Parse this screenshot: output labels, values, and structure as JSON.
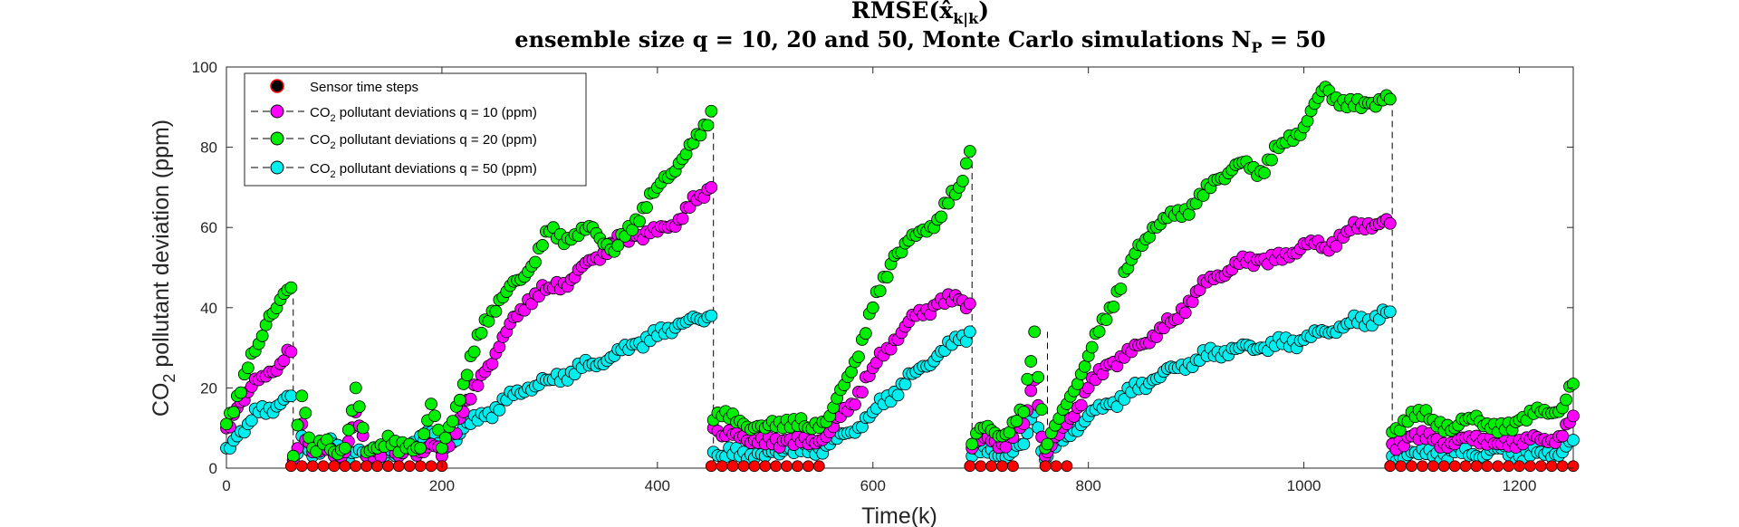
{
  "chart_data": {
    "type": "scatter",
    "title": "RMSE(x̂",
    "title_subscript": "k|k",
    "title_close": ")",
    "subtitle": "ensemble size q = 10, 20 and 50, Monte Carlo simulations N",
    "subtitle_subscript": "P",
    "subtitle_tail": " = 50",
    "xlabel": "Time(k)",
    "ylabel_prefix": "CO",
    "ylabel_subscript": "2",
    "ylabel_suffix": " pollutant deviation (ppm)",
    "xlim": [
      0,
      1250
    ],
    "ylim": [
      0,
      100
    ],
    "xticks": [
      0,
      200,
      400,
      600,
      800,
      1000,
      1200
    ],
    "yticks": [
      0,
      20,
      40,
      60,
      80,
      100
    ],
    "grid": false,
    "legend_position": "top-left",
    "sensor_steps": {
      "name": "Sensor time steps",
      "color": "#ff0000",
      "x": [
        60,
        70,
        80,
        90,
        100,
        110,
        120,
        130,
        140,
        150,
        160,
        170,
        180,
        190,
        200,
        450,
        460,
        470,
        480,
        490,
        500,
        510,
        520,
        530,
        540,
        550,
        690,
        700,
        710,
        720,
        730,
        760,
        770,
        780,
        1080,
        1090,
        1100,
        1110,
        1120,
        1130,
        1140,
        1150,
        1160,
        1170,
        1180,
        1190,
        1200,
        1210,
        1220,
        1230,
        1240,
        1250
      ],
      "y": [
        0.5,
        0.5,
        0.5,
        0.5,
        0.5,
        0.5,
        0.5,
        0.5,
        0.5,
        0.5,
        0.5,
        0.5,
        0.5,
        0.5,
        0.5,
        0.5,
        0.5,
        0.5,
        0.5,
        0.5,
        0.5,
        0.5,
        0.5,
        0.5,
        0.5,
        0.5,
        0.5,
        0.5,
        0.5,
        0.5,
        0.5,
        0.5,
        0.5,
        0.5,
        0.5,
        0.5,
        0.5,
        0.5,
        0.5,
        0.5,
        0.5,
        0.5,
        0.5,
        0.5,
        0.5,
        0.5,
        0.5,
        0.5,
        0.5,
        0.5,
        0.5,
        0.5
      ]
    },
    "series": [
      {
        "name_prefix": "CO",
        "name_subscript": "2",
        "name_suffix": " pollutant deviations q = 10 (ppm)",
        "color": "#ff00ff",
        "x": [
          0,
          10,
          20,
          30,
          40,
          50,
          60,
          62,
          70,
          80,
          90,
          100,
          110,
          120,
          130,
          140,
          150,
          160,
          170,
          180,
          190,
          200,
          220,
          240,
          260,
          280,
          300,
          320,
          340,
          360,
          380,
          400,
          420,
          440,
          450,
          452,
          460,
          480,
          500,
          520,
          540,
          560,
          580,
          600,
          620,
          640,
          660,
          680,
          690,
          692,
          700,
          720,
          740,
          750,
          760,
          762,
          780,
          800,
          820,
          840,
          860,
          880,
          900,
          920,
          940,
          960,
          980,
          1000,
          1020,
          1040,
          1060,
          1080,
          1082,
          1100,
          1120,
          1140,
          1160,
          1180,
          1200,
          1220,
          1240,
          1250
        ],
        "y": [
          10,
          15,
          19,
          22,
          24,
          26,
          29,
          2,
          11,
          4,
          5,
          3,
          4,
          14,
          3,
          4,
          6,
          3,
          5,
          4,
          6,
          3,
          14,
          24,
          34,
          42,
          45,
          47,
          52,
          56,
          58,
          59,
          62,
          68,
          70,
          10,
          8,
          8,
          6,
          7,
          6,
          9,
          16,
          25,
          32,
          38,
          41,
          42,
          41,
          5,
          7,
          6,
          11,
          22,
          3,
          4,
          11,
          20,
          26,
          29,
          33,
          37,
          44,
          48,
          51,
          52,
          52,
          56,
          55,
          59,
          61,
          61,
          6,
          8,
          7,
          6,
          8,
          6,
          7,
          7,
          8,
          13
        ]
      },
      {
        "name_prefix": "CO",
        "name_subscript": "2",
        "name_suffix": " pollutant deviations q = 20 (ppm)",
        "color": "#00ee00",
        "x": [
          0,
          10,
          20,
          30,
          40,
          50,
          60,
          62,
          70,
          80,
          90,
          100,
          110,
          120,
          130,
          140,
          150,
          160,
          170,
          180,
          190,
          200,
          220,
          240,
          260,
          280,
          300,
          320,
          340,
          360,
          380,
          400,
          420,
          440,
          450,
          452,
          460,
          480,
          500,
          520,
          540,
          560,
          580,
          600,
          620,
          640,
          660,
          680,
          690,
          692,
          700,
          720,
          740,
          750,
          760,
          762,
          780,
          800,
          820,
          840,
          860,
          880,
          900,
          920,
          940,
          960,
          980,
          1000,
          1020,
          1040,
          1060,
          1080,
          1082,
          1100,
          1120,
          1140,
          1160,
          1180,
          1200,
          1220,
          1240,
          1250
        ],
        "y": [
          11,
          18,
          25,
          31,
          38,
          42,
          45,
          3,
          18,
          5,
          6,
          4,
          5,
          20,
          4,
          5,
          8,
          4,
          6,
          5,
          16,
          5,
          21,
          37,
          44,
          49,
          59,
          57,
          60,
          54,
          62,
          70,
          76,
          83,
          89,
          12,
          13,
          11,
          10,
          12,
          10,
          13,
          24,
          40,
          53,
          58,
          62,
          70,
          79,
          6,
          10,
          8,
          14,
          34,
          5,
          6,
          16,
          28,
          40,
          52,
          60,
          63,
          66,
          72,
          76,
          74,
          81,
          85,
          95,
          90,
          91,
          92,
          9,
          14,
          12,
          10,
          13,
          9,
          12,
          14,
          15,
          21
        ]
      },
      {
        "name_prefix": "CO",
        "name_subscript": "2",
        "name_suffix": " pollutant deviations q = 50 (ppm)",
        "color": "#00eeee",
        "x": [
          0,
          10,
          20,
          30,
          40,
          50,
          60,
          62,
          70,
          80,
          90,
          100,
          110,
          120,
          130,
          140,
          150,
          160,
          170,
          180,
          190,
          200,
          220,
          240,
          260,
          280,
          300,
          320,
          340,
          360,
          380,
          400,
          420,
          440,
          450,
          452,
          460,
          480,
          500,
          520,
          540,
          560,
          580,
          600,
          620,
          640,
          660,
          680,
          690,
          692,
          700,
          720,
          740,
          750,
          760,
          762,
          780,
          800,
          820,
          840,
          860,
          880,
          900,
          920,
          940,
          960,
          980,
          1000,
          1020,
          1040,
          1060,
          1080,
          1082,
          1100,
          1120,
          1140,
          1160,
          1180,
          1200,
          1220,
          1240,
          1250
        ],
        "y": [
          5,
          8,
          11,
          14,
          15,
          16,
          18,
          2,
          8,
          3,
          5,
          6,
          3,
          4,
          3,
          2,
          4,
          3,
          5,
          8,
          9,
          4,
          10,
          13,
          17,
          20,
          22,
          24,
          26,
          28,
          31,
          33,
          36,
          37,
          38,
          4,
          3,
          4,
          3,
          5,
          4,
          6,
          9,
          14,
          19,
          24,
          28,
          32,
          34,
          3,
          4,
          3,
          6,
          14,
          2,
          3,
          8,
          13,
          16,
          19,
          22,
          25,
          27,
          29,
          30,
          30,
          31,
          32,
          34,
          36,
          37,
          39,
          3,
          4,
          3,
          4,
          3,
          5,
          3,
          4,
          4,
          7
        ]
      }
    ],
    "resets": [
      {
        "x": 62,
        "y_top": 45
      },
      {
        "x": 452,
        "y_top": 89
      },
      {
        "x": 692,
        "y_top": 79
      },
      {
        "x": 762,
        "y_top": 34
      },
      {
        "x": 1082,
        "y_top": 92
      }
    ]
  }
}
